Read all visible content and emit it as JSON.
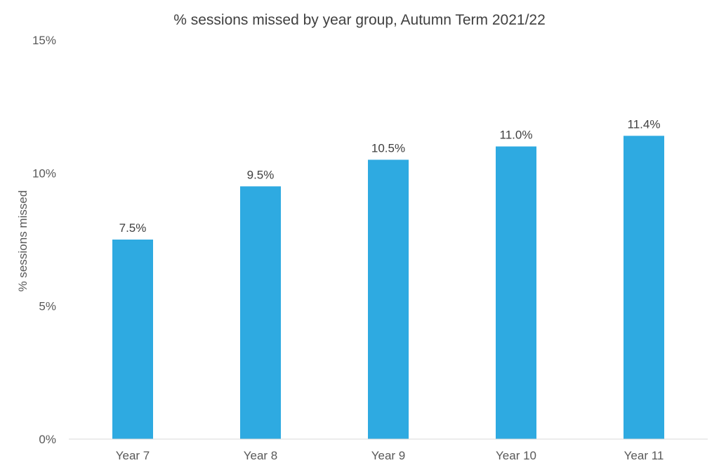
{
  "chart_data": {
    "type": "bar",
    "title": "% sessions missed by year group, Autumn Term 2021/22",
    "xlabel": "",
    "ylabel": "% sessions missed",
    "categories": [
      "Year 7",
      "Year 8",
      "Year 9",
      "Year 10",
      "Year 11"
    ],
    "values": [
      7.5,
      9.5,
      10.5,
      11.0,
      11.4
    ],
    "data_labels": [
      "7.5%",
      "9.5%",
      "10.5%",
      "11.0%",
      "11.4%"
    ],
    "ylim": [
      0,
      15
    ],
    "yticks": [
      0,
      5,
      10,
      15
    ],
    "ytick_labels": [
      "0%",
      "5%",
      "10%",
      "15%"
    ],
    "grid": false,
    "legend": "none",
    "bar_color": "#2EAAE1"
  }
}
